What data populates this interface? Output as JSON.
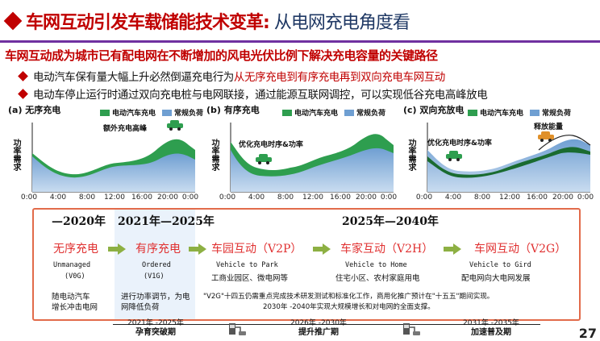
{
  "title": {
    "main": "车网互动引发车载储能技术变革:",
    "sub": "从电网充电角度看"
  },
  "lead": "车网互动成为城市已有配电网在不断增加的风电光伏比例下解决充电容量的关键路径",
  "bullets": [
    {
      "prefix": "电动汽车保有量大幅上升必然倒逼充电行为",
      "highlight": "从无序充电到有序充电再到双向充电车网互动",
      "suffix": ""
    },
    {
      "prefix": "电动车停止运行时通过双向充电桩与电网联接，通过能源互联网调控，可以实现低谷充电高峰放电",
      "highlight": "",
      "suffix": ""
    }
  ],
  "charts": [
    {
      "tag": "(a)  无序充电",
      "legend_ev": "电动汽车充电",
      "legend_base": "常规负荷",
      "ylabel": "功率需求",
      "annotation": "额外充电高峰",
      "ticks": [
        "0:00",
        "4:00",
        "8:00",
        "12:00",
        "16:00",
        "20:00",
        "0:00"
      ]
    },
    {
      "tag": "(b)  有序充电",
      "legend_ev": "电动汽车充电",
      "legend_base": "常规负荷",
      "ylabel": "功率需求",
      "annotation": "优化充电时序&功率",
      "ticks": [
        "0:00",
        "4:00",
        "8:00",
        "12:00",
        "16:00",
        "20:00",
        "0:00"
      ]
    },
    {
      "tag": "(c)  双向充放电",
      "legend_ev": "电动汽车充电",
      "legend_base": "常规负荷",
      "ylabel": "功率需求",
      "annotation": "优化充电时序&功率",
      "annotation2": "释放能量",
      "ticks": [
        "0:00",
        "4:00",
        "8:00",
        "12:00",
        "16:00",
        "20:00",
        "0:00"
      ]
    }
  ],
  "colors": {
    "ev_charge": "#2e9e4f",
    "base_load": "#6f9fd2",
    "accent_red": "#c00000",
    "arrow_green": "#8db043",
    "frame_orange": "#e26b4a"
  },
  "timeline": {
    "eras": [
      "—2020年",
      "2021年—2025年",
      "2025年—2040年"
    ],
    "stages": [
      {
        "cn": "无序充电",
        "en": "Unmanaged",
        "code": "(V0G)",
        "desc": [
          "随电动汽车",
          "增长冲击电网"
        ]
      },
      {
        "cn": "有序充电",
        "en": "Ordered",
        "code": "(V1G)",
        "desc": [
          "进行功率调节，为电",
          "网降低负荷"
        ]
      },
      {
        "cn": "车园互动（V2P）",
        "en": "Vehicle to Park",
        "sub": "工商业园区、微电网等"
      },
      {
        "cn": "车家互动（V2H）",
        "en": "Vehicle to Home",
        "sub": "住宅小区、农村家庭用电"
      },
      {
        "cn": "车网互动（V2G）",
        "en": "Vehicle to Gird",
        "sub": "配电网向大电网发展"
      }
    ],
    "v2g_desc": [
      "\"V2G\"十四五仍需重点完成技术研发测试和标准化工作，商用化推广预计在\"十五五\"期间实现。",
      "2030年 -2040年实现大规模增长和对电网的全面支撑。"
    ]
  },
  "phases": [
    {
      "years": "2021年 -2025年",
      "name": "孕育突破期"
    },
    {
      "years": "2026年 -2030年",
      "name": "提升推广期"
    },
    {
      "years": "2031年 -2035年",
      "name": "加速普及期"
    }
  ],
  "page_number": "27"
}
